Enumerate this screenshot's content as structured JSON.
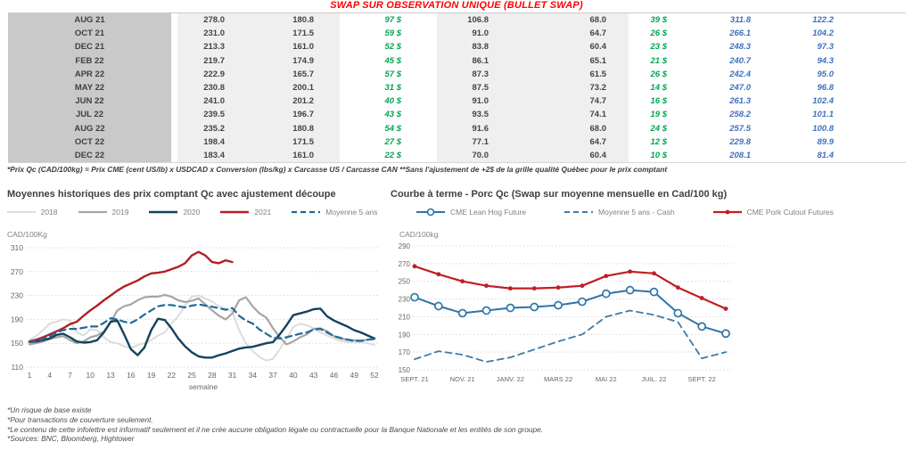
{
  "title": "SWAP SUR OBSERVATION UNIQUE (BULLET SWAP)",
  "table": {
    "rows": [
      {
        "month": "AUG 21",
        "c1": "278.0",
        "c2": "180.8",
        "g1": "97 $",
        "c3": "106.8",
        "c4": "68.0",
        "g2": "39 $",
        "b1": "311.8",
        "b2": "122.2"
      },
      {
        "month": "OCT 21",
        "c1": "231.0",
        "c2": "171.5",
        "g1": "59 $",
        "c3": "91.0",
        "c4": "64.7",
        "g2": "26 $",
        "b1": "266.1",
        "b2": "104.2"
      },
      {
        "month": "DEC 21",
        "c1": "213.3",
        "c2": "161.0",
        "g1": "52 $",
        "c3": "83.8",
        "c4": "60.4",
        "g2": "23 $",
        "b1": "248.3",
        "b2": "97.3"
      },
      {
        "month": "FEB 22",
        "c1": "219.7",
        "c2": "174.9",
        "g1": "45 $",
        "c3": "86.1",
        "c4": "65.1",
        "g2": "21 $",
        "b1": "240.7",
        "b2": "94.3"
      },
      {
        "month": "APR 22",
        "c1": "222.9",
        "c2": "165.7",
        "g1": "57 $",
        "c3": "87.3",
        "c4": "61.5",
        "g2": "26 $",
        "b1": "242.4",
        "b2": "95.0"
      },
      {
        "month": "MAY 22",
        "c1": "230.8",
        "c2": "200.1",
        "g1": "31 $",
        "c3": "87.5",
        "c4": "73.2",
        "g2": "14 $",
        "b1": "247.0",
        "b2": "96.8"
      },
      {
        "month": "JUN 22",
        "c1": "241.0",
        "c2": "201.2",
        "g1": "40 $",
        "c3": "91.0",
        "c4": "74.7",
        "g2": "16 $",
        "b1": "261.3",
        "b2": "102.4"
      },
      {
        "month": "JUL 22",
        "c1": "239.5",
        "c2": "196.7",
        "g1": "43 $",
        "c3": "93.5",
        "c4": "74.1",
        "g2": "19 $",
        "b1": "258.2",
        "b2": "101.1"
      },
      {
        "month": "AUG 22",
        "c1": "235.2",
        "c2": "180.8",
        "g1": "54 $",
        "c3": "91.6",
        "c4": "68.0",
        "g2": "24 $",
        "b1": "257.5",
        "b2": "100.8"
      },
      {
        "month": "OCT 22",
        "c1": "198.4",
        "c2": "171.5",
        "g1": "27 $",
        "c3": "77.1",
        "c4": "64.7",
        "g2": "12 $",
        "b1": "229.8",
        "b2": "89.9"
      },
      {
        "month": "DEC 22",
        "c1": "183.4",
        "c2": "161.0",
        "g1": "22 $",
        "c3": "70.0",
        "c4": "60.4",
        "g2": "10 $",
        "b1": "208.1",
        "b2": "81.4"
      }
    ]
  },
  "table_note": "*Prix Qc (CAD/100kg) = Prix CME (cent US/lb) x USDCAD x Conversion (lbs/kg) x Carcasse US / Carcasse CAN **Sans l'ajustement de +2$ de la grille qualité Québec pour le prix comptant",
  "chart_data": [
    {
      "type": "line",
      "title": "Moyennes historiques des prix comptant Qc avec ajustement découpe",
      "ylabel": "CAD/100Kg",
      "xlabel": "semaine",
      "ylim": [
        110,
        310
      ],
      "yticks": [
        110,
        150,
        190,
        230,
        270,
        310
      ],
      "xticks": [
        1,
        4,
        7,
        10,
        13,
        16,
        19,
        22,
        25,
        28,
        31,
        34,
        37,
        40,
        43,
        46,
        49,
        52
      ],
      "x_range": [
        1,
        52
      ],
      "grid": true,
      "legend_position": "top",
      "series": [
        {
          "name": "2018",
          "color": "#dcdcdc",
          "width": 2,
          "dashed": false,
          "marker": null,
          "values": [
            155,
            162,
            172,
            183,
            186,
            190,
            188,
            168,
            163,
            173,
            172,
            160,
            152,
            150,
            145,
            142,
            147,
            150,
            155,
            163,
            168,
            183,
            195,
            213,
            228,
            230,
            225,
            220,
            212,
            208,
            203,
            172,
            150,
            137,
            127,
            121,
            124,
            140,
            157,
            177,
            183,
            180,
            175,
            168,
            163,
            158,
            154,
            152,
            152,
            152,
            150,
            147
          ]
        },
        {
          "name": "2019",
          "color": "#a6a6a6",
          "width": 2.2,
          "dashed": false,
          "marker": null,
          "values": [
            148,
            150,
            153,
            157,
            160,
            162,
            155,
            150,
            153,
            160,
            163,
            170,
            185,
            205,
            212,
            215,
            222,
            227,
            228,
            228,
            231,
            228,
            222,
            219,
            221,
            225,
            215,
            205,
            196,
            190,
            200,
            222,
            227,
            212,
            200,
            193,
            175,
            160,
            148,
            153,
            160,
            165,
            174,
            175,
            170,
            162,
            158,
            156,
            155,
            154,
            156,
            158
          ]
        },
        {
          "name": "2020",
          "color": "#15425c",
          "width": 2.4,
          "dashed": false,
          "marker": null,
          "values": [
            152,
            153,
            155,
            158,
            164,
            166,
            160,
            153,
            151,
            152,
            155,
            168,
            186,
            188,
            165,
            140,
            130,
            143,
            172,
            191,
            189,
            175,
            158,
            145,
            135,
            128,
            126,
            126,
            130,
            133,
            137,
            141,
            143,
            144,
            147,
            150,
            152,
            165,
            180,
            197,
            200,
            203,
            207,
            208,
            195,
            188,
            183,
            178,
            172,
            168,
            163,
            158
          ]
        },
        {
          "name": "2021",
          "color": "#b02125",
          "width": 2.4,
          "dashed": false,
          "marker": null,
          "values": [
            153,
            156,
            160,
            165,
            170,
            175,
            182,
            186,
            196,
            205,
            213,
            222,
            230,
            238,
            245,
            250,
            255,
            262,
            267,
            268,
            270,
            274,
            278,
            284,
            297,
            303,
            297,
            286,
            284,
            289,
            286,
            null,
            null,
            null,
            null,
            null,
            null,
            null,
            null,
            null,
            null,
            null,
            null,
            null,
            null,
            null,
            null,
            null,
            null,
            null,
            null,
            null
          ]
        },
        {
          "name": "Moyenne 5 ans",
          "color": "#1f6a9a",
          "width": 2.2,
          "dashed": true,
          "marker": null,
          "values": [
            152,
            154,
            157,
            162,
            168,
            172,
            174,
            174,
            176,
            178,
            178,
            184,
            192,
            190,
            186,
            184,
            190,
            198,
            205,
            212,
            214,
            214,
            212,
            210,
            213,
            215,
            213,
            211,
            209,
            206,
            209,
            196,
            188,
            183,
            173,
            166,
            159,
            158,
            160,
            163,
            166,
            168,
            173,
            174,
            168,
            162,
            159,
            156,
            154,
            154,
            156,
            157
          ]
        }
      ]
    },
    {
      "type": "line",
      "title": "Courbe à terme - Porc Qc (Swap sur moyenne mensuelle en Cad/100 kg)",
      "ylabel": "CAD/100kg",
      "xlabel": "",
      "ylim": [
        150,
        290
      ],
      "yticks": [
        150,
        170,
        190,
        210,
        230,
        250,
        270,
        290
      ],
      "xtick_labels": [
        "SEPT. 21",
        "NOV. 21",
        "JANV. 22",
        "MARS 22",
        "MAI 22",
        "JUIL. 22",
        "SEPT. 22"
      ],
      "xtick_positions": [
        0,
        2,
        4,
        6,
        8,
        10,
        12
      ],
      "n_points": 14,
      "grid": true,
      "legend_position": "top",
      "series": [
        {
          "name": "CME Lean Hog Future",
          "color": "#2e75a8",
          "width": 2,
          "dashed": false,
          "marker": "open-circle",
          "values": [
            232,
            222,
            214,
            217,
            220,
            221,
            223,
            227,
            236,
            240,
            238,
            214,
            199,
            191
          ]
        },
        {
          "name": "Moyenne 5 ans - Cash",
          "color": "#3c7bab",
          "width": 1.8,
          "dashed": true,
          "marker": null,
          "values": [
            162,
            171,
            167,
            159,
            164,
            173,
            182,
            190,
            210,
            217,
            212,
            204,
            163,
            170
          ]
        },
        {
          "name": "CME Pork Cutout Futures",
          "color": "#bf1e24",
          "width": 2.2,
          "dashed": false,
          "marker": "dot",
          "values": [
            267,
            258,
            250,
            245,
            242,
            242,
            243,
            245,
            256,
            261,
            259,
            243,
            231,
            219
          ]
        }
      ]
    }
  ],
  "footnotes": [
    "*Un risque de base existe",
    "*Pour transactions de couverture seulement.",
    "*Le contenu de cette infolettre est informatif seulement et il ne crée aucune obligation légale ou contractuelle pour la Banque Nationale et les entités de son groupe.",
    "*Sources: BNC, Bloomberg, Hightower"
  ],
  "colors": {
    "title_red": "#ff0000",
    "positive_green": "#00a650",
    "swap_blue": "#3f6fbf",
    "month_gray": "#c9c9c9",
    "row_gray": "#efefef"
  }
}
